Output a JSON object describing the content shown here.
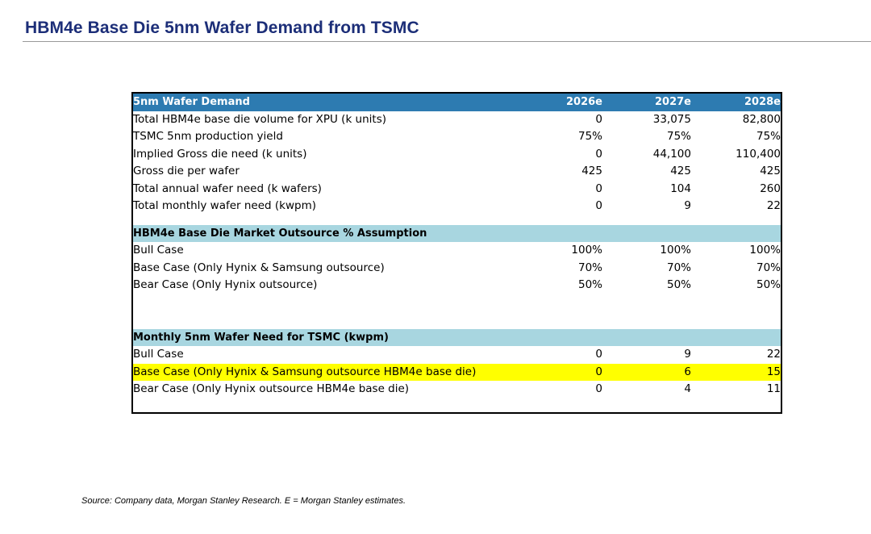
{
  "page": {
    "title": "HBM4e Base Die 5nm Wafer Demand from TSMC",
    "source": "Source: Company data, Morgan Stanley Research.  E = Morgan Stanley estimates."
  },
  "colors": {
    "title": "#1c2e78",
    "header_dark": "#2d7bb1",
    "header_light": "#a8d6e0",
    "highlight": "#ffff00"
  },
  "table": {
    "header": {
      "label": "5nm Wafer Demand",
      "years": [
        "2026e",
        "2027e",
        "2028e"
      ]
    },
    "demand_rows": [
      {
        "label": "Total HBM4e base die volume for XPU (k units)",
        "values": [
          "0",
          "33,075",
          "82,800"
        ]
      },
      {
        "label": "TSMC 5nm production yield",
        "values": [
          "75%",
          "75%",
          "75%"
        ]
      },
      {
        "label": "Implied Gross die need (k units)",
        "values": [
          "0",
          "44,100",
          "110,400"
        ]
      },
      {
        "label": "Gross die per wafer",
        "values": [
          "425",
          "425",
          "425"
        ]
      },
      {
        "label": "Total annual wafer need (k wafers)",
        "values": [
          "0",
          "104",
          "260"
        ]
      },
      {
        "label": "Total monthly wafer need (kwpm)",
        "values": [
          "0",
          "9",
          "22"
        ]
      }
    ],
    "outsource_header": "HBM4e Base Die Market Outsource % Assumption",
    "outsource_rows": [
      {
        "label": "Bull Case",
        "values": [
          "100%",
          "100%",
          "100%"
        ]
      },
      {
        "label": "Base Case (Only Hynix & Samsung outsource)",
        "values": [
          "70%",
          "70%",
          "70%"
        ]
      },
      {
        "label": "Bear Case (Only Hynix outsource)",
        "values": [
          "50%",
          "50%",
          "50%"
        ]
      }
    ],
    "monthly_header": "Monthly 5nm Wafer Need for TSMC (kwpm)",
    "monthly_rows": [
      {
        "label": "Bull Case",
        "values": [
          "0",
          "9",
          "22"
        ],
        "highlight": false
      },
      {
        "label": "Base Case (Only Hynix & Samsung outsource HBM4e base die)",
        "values": [
          "0",
          "6",
          "15"
        ],
        "highlight": true
      },
      {
        "label": "Bear Case (Only Hynix outsource HBM4e base die)",
        "values": [
          "0",
          "4",
          "11"
        ],
        "highlight": false
      }
    ]
  }
}
